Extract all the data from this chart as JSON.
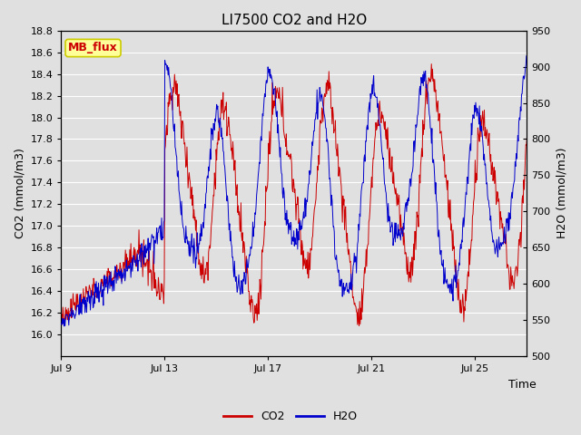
{
  "title": "LI7500 CO2 and H2O",
  "xlabel": "Time",
  "ylabel_left": "CO2 (mmol/m3)",
  "ylabel_right": "H2O (mmol/m3)",
  "co2_ylim": [
    15.8,
    18.8
  ],
  "h2o_ylim": [
    500,
    950
  ],
  "co2_yticks": [
    16.0,
    16.2,
    16.4,
    16.6,
    16.8,
    17.0,
    17.2,
    17.4,
    17.6,
    17.8,
    18.0,
    18.2,
    18.4,
    18.6,
    18.8
  ],
  "h2o_yticks": [
    500,
    550,
    600,
    650,
    700,
    750,
    800,
    850,
    900,
    950
  ],
  "xtick_positions": [
    0,
    4,
    8,
    12,
    16
  ],
  "xtick_labels": [
    "Jul 9",
    "Jul 13",
    "Jul 17",
    "Jul 21",
    "Jul 25"
  ],
  "xlim": [
    0,
    18
  ],
  "co2_color": "#cc0000",
  "h2o_color": "#0000cc",
  "bg_color": "#e0e0e0",
  "grid_color": "#ffffff",
  "annotation_text": "MB_flux",
  "annotation_bg": "#ffff99",
  "annotation_border": "#cccc00",
  "legend_co2": "CO2",
  "legend_h2o": "H2O",
  "title_fontsize": 11,
  "axis_label_fontsize": 9,
  "tick_fontsize": 8,
  "legend_fontsize": 9,
  "linewidth": 0.7
}
